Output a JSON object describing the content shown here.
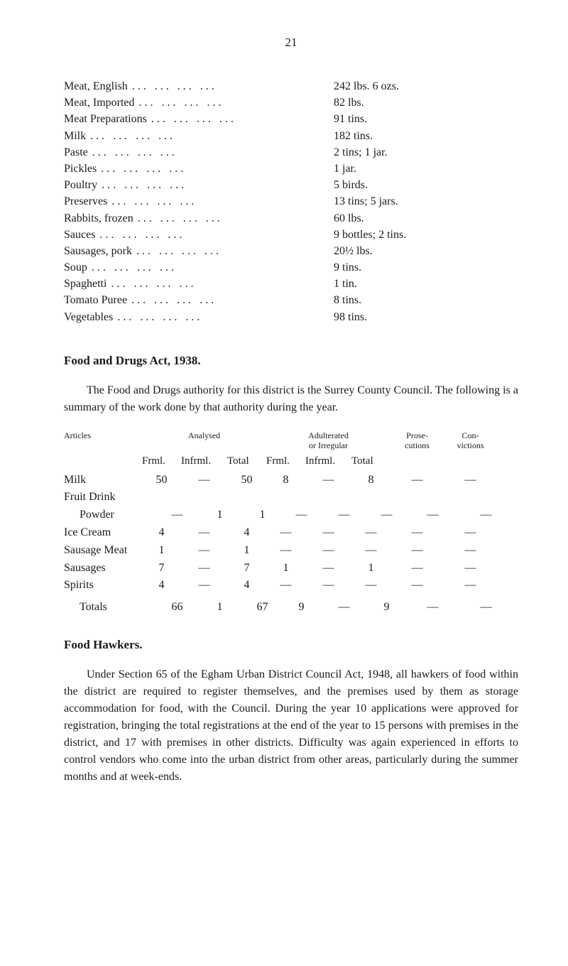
{
  "page_number": "21",
  "food_list": {
    "items": [
      {
        "label": "Meat, English",
        "qty": "242 lbs. 6 ozs."
      },
      {
        "label": "Meat, Imported",
        "qty": "82 lbs."
      },
      {
        "label": "Meat Preparations",
        "qty": "91 tins."
      },
      {
        "label": "Milk",
        "qty": "182 tins."
      },
      {
        "label": "Paste",
        "qty": "2 tins; 1 jar."
      },
      {
        "label": "Pickles",
        "qty": "1 jar."
      },
      {
        "label": "Poultry",
        "qty": "5 birds."
      },
      {
        "label": "Preserves",
        "qty": "13 tins; 5 jars."
      },
      {
        "label": "Rabbits, frozen",
        "qty": "60 lbs."
      },
      {
        "label": "Sauces",
        "qty": "9 bottles; 2 tins."
      },
      {
        "label": "Sausages, pork",
        "qty": "20½ lbs."
      },
      {
        "label": "Soup",
        "qty": "9 tins."
      },
      {
        "label": "Spaghetti",
        "qty": "1 tin."
      },
      {
        "label": "Tomato Puree",
        "qty": "8 tins."
      },
      {
        "label": "Vegetables",
        "qty": "98 tins."
      }
    ]
  },
  "section_food_drugs": {
    "title": "Food and Drugs Act, 1938.",
    "para": "The Food and Drugs authority for this district is the Surrey County Council. The following is a summary of the work done by that authority during the year."
  },
  "analysis_table": {
    "head_articles": "Articles",
    "head_analysed": "Analysed",
    "head_adulterated": "Adulterated\nor Irregular",
    "head_prose": "Prose-\ncutions",
    "head_conv": "Con-\nvictions",
    "sub_frml": "Frml.",
    "sub_infrml": "Infrml.",
    "sub_total": "Total",
    "rows": [
      {
        "article": "Milk",
        "f1": "50",
        "i1": "—",
        "t1": "50",
        "f2": "8",
        "i2": "—",
        "t2": "8",
        "pr": "—",
        "cv": "—"
      },
      {
        "article": "Fruit Drink",
        "f1": "",
        "i1": "",
        "t1": "",
        "f2": "",
        "i2": "",
        "t2": "",
        "pr": "",
        "cv": ""
      },
      {
        "article": "Powder",
        "indent": true,
        "f1": "—",
        "i1": "1",
        "t1": "1",
        "f2": "—",
        "i2": "—",
        "t2": "—",
        "pr": "—",
        "cv": "—"
      },
      {
        "article": "Ice Cream",
        "f1": "4",
        "i1": "—",
        "t1": "4",
        "f2": "—",
        "i2": "—",
        "t2": "—",
        "pr": "—",
        "cv": "—"
      },
      {
        "article": "Sausage Meat",
        "f1": "1",
        "i1": "—",
        "t1": "1",
        "f2": "—",
        "i2": "—",
        "t2": "—",
        "pr": "—",
        "cv": "—"
      },
      {
        "article": "Sausages",
        "f1": "7",
        "i1": "—",
        "t1": "7",
        "f2": "1",
        "i2": "—",
        "t2": "1",
        "pr": "—",
        "cv": "—"
      },
      {
        "article": "Spirits",
        "f1": "4",
        "i1": "—",
        "t1": "4",
        "f2": "—",
        "i2": "—",
        "t2": "—",
        "pr": "—",
        "cv": "—"
      }
    ],
    "totals": {
      "article": "Totals",
      "indent": true,
      "f1": "66",
      "i1": "1",
      "t1": "67",
      "f2": "9",
      "i2": "—",
      "t2": "9",
      "pr": "—",
      "cv": "—"
    }
  },
  "section_hawkers": {
    "title": "Food Hawkers.",
    "para": "Under Section 65 of the Egham Urban District Council Act, 1948, all hawkers of food within the district are required to register them­selves, and the premises used by them as storage accommodation for food, with the Council. During the year 10 applications were approved for registration, bringing the total registrations at the end of the year to 15 persons with premises in the district, and 17 with premises in other districts. Difficulty was again experienced in efforts to control vendors who come into the urban district from other areas, particularly during the summer months and at week-ends."
  },
  "dots_fill": "...    ...    ...    ..."
}
